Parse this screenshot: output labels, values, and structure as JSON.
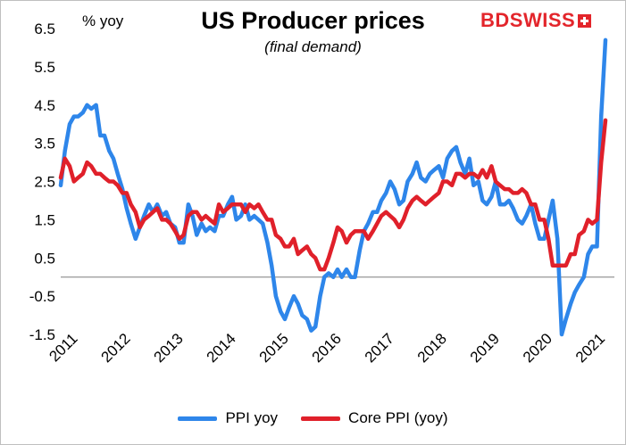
{
  "chart_data": {
    "type": "line",
    "title": "US Producer prices",
    "subtitle": "(final demand)",
    "ylabel": "% yoy",
    "ylim": [
      -1.5,
      6.5
    ],
    "yticks": [
      -1.5,
      -0.5,
      0.5,
      1.5,
      2.5,
      3.5,
      4.5,
      5.5,
      6.5
    ],
    "ytick_labels": [
      "-1.5",
      "-0.5",
      "0.5",
      "1.5",
      "2.5",
      "3.5",
      "4.5",
      "5.5",
      "6.5"
    ],
    "xlim": [
      2011.0,
      2021.5
    ],
    "xtick_values": [
      2011,
      2012,
      2013,
      2014,
      2015,
      2016,
      2017,
      2018,
      2019,
      2020,
      2021
    ],
    "xtick_labels": [
      "2011",
      "2012",
      "2013",
      "2014",
      "2015",
      "2016",
      "2017",
      "2018",
      "2019",
      "2020",
      "2021"
    ],
    "legend_position": "bottom",
    "grid": false,
    "series": [
      {
        "name": "PPI yoy",
        "color": "#2e86ea",
        "x": [
          2011.0,
          2011.08,
          2011.17,
          2011.25,
          2011.33,
          2011.42,
          2011.5,
          2011.58,
          2011.67,
          2011.75,
          2011.83,
          2011.92,
          2012.0,
          2012.08,
          2012.17,
          2012.25,
          2012.33,
          2012.42,
          2012.5,
          2012.58,
          2012.67,
          2012.75,
          2012.83,
          2012.92,
          2013.0,
          2013.08,
          2013.17,
          2013.25,
          2013.33,
          2013.42,
          2013.5,
          2013.58,
          2013.67,
          2013.75,
          2013.83,
          2013.92,
          2014.0,
          2014.08,
          2014.17,
          2014.25,
          2014.33,
          2014.42,
          2014.5,
          2014.58,
          2014.67,
          2014.75,
          2014.83,
          2014.92,
          2015.0,
          2015.08,
          2015.17,
          2015.25,
          2015.33,
          2015.42,
          2015.5,
          2015.58,
          2015.67,
          2015.75,
          2015.83,
          2015.92,
          2016.0,
          2016.08,
          2016.17,
          2016.25,
          2016.33,
          2016.42,
          2016.5,
          2016.58,
          2016.67,
          2016.75,
          2016.83,
          2016.92,
          2017.0,
          2017.08,
          2017.17,
          2017.25,
          2017.33,
          2017.42,
          2017.5,
          2017.58,
          2017.67,
          2017.75,
          2017.83,
          2017.92,
          2018.0,
          2018.08,
          2018.17,
          2018.25,
          2018.33,
          2018.42,
          2018.5,
          2018.58,
          2018.67,
          2018.75,
          2018.83,
          2018.92,
          2019.0,
          2019.08,
          2019.17,
          2019.25,
          2019.33,
          2019.42,
          2019.5,
          2019.58,
          2019.67,
          2019.75,
          2019.83,
          2019.92,
          2020.0,
          2020.08,
          2020.17,
          2020.25,
          2020.33,
          2020.42,
          2020.5,
          2020.58,
          2020.67,
          2020.75,
          2020.83,
          2020.92,
          2021.0,
          2021.08,
          2021.17,
          2021.25,
          2021.33
        ],
        "y": [
          2.4,
          3.3,
          4.0,
          4.2,
          4.2,
          4.3,
          4.5,
          4.4,
          4.5,
          3.7,
          3.7,
          3.3,
          3.1,
          2.7,
          2.3,
          1.8,
          1.4,
          1.0,
          1.3,
          1.6,
          1.9,
          1.7,
          1.9,
          1.6,
          1.7,
          1.4,
          1.3,
          0.9,
          0.9,
          1.9,
          1.6,
          1.1,
          1.4,
          1.2,
          1.3,
          1.2,
          1.6,
          1.6,
          1.9,
          2.1,
          1.5,
          1.6,
          1.9,
          1.5,
          1.6,
          1.5,
          1.4,
          0.9,
          0.3,
          -0.5,
          -0.9,
          -1.1,
          -0.8,
          -0.5,
          -0.7,
          -1.0,
          -1.1,
          -1.4,
          -1.3,
          -0.5,
          0.0,
          0.1,
          0.0,
          0.2,
          0.0,
          0.2,
          0.0,
          0.0,
          0.7,
          1.2,
          1.4,
          1.7,
          1.7,
          2.0,
          2.2,
          2.5,
          2.3,
          1.9,
          2.0,
          2.5,
          2.7,
          3.0,
          2.6,
          2.5,
          2.7,
          2.8,
          2.9,
          2.6,
          3.1,
          3.3,
          3.4,
          3.0,
          2.7,
          3.1,
          2.4,
          2.5,
          2.0,
          1.9,
          2.1,
          2.5,
          1.9,
          1.9,
          2.0,
          1.8,
          1.5,
          1.4,
          1.6,
          1.9,
          1.4,
          1.0,
          1.0,
          1.5,
          2.0,
          1.0,
          -1.5,
          -1.1,
          -0.7,
          -0.4,
          -0.2,
          0.0,
          0.6,
          0.8,
          0.8,
          4.2,
          6.2
        ]
      },
      {
        "name": "Core PPI (yoy)",
        "color": "#e0202a",
        "x": [
          2011.0,
          2011.08,
          2011.17,
          2011.25,
          2011.33,
          2011.42,
          2011.5,
          2011.58,
          2011.67,
          2011.75,
          2011.83,
          2011.92,
          2012.0,
          2012.08,
          2012.17,
          2012.25,
          2012.33,
          2012.42,
          2012.5,
          2012.58,
          2012.67,
          2012.75,
          2012.83,
          2012.92,
          2013.0,
          2013.08,
          2013.17,
          2013.25,
          2013.33,
          2013.42,
          2013.5,
          2013.58,
          2013.67,
          2013.75,
          2013.83,
          2013.92,
          2014.0,
          2014.08,
          2014.17,
          2014.25,
          2014.33,
          2014.42,
          2014.5,
          2014.58,
          2014.67,
          2014.75,
          2014.83,
          2014.92,
          2015.0,
          2015.08,
          2015.17,
          2015.25,
          2015.33,
          2015.42,
          2015.5,
          2015.58,
          2015.67,
          2015.75,
          2015.83,
          2015.92,
          2016.0,
          2016.08,
          2016.17,
          2016.25,
          2016.33,
          2016.42,
          2016.5,
          2016.58,
          2016.67,
          2016.75,
          2016.83,
          2016.92,
          2017.0,
          2017.08,
          2017.17,
          2017.25,
          2017.33,
          2017.42,
          2017.5,
          2017.58,
          2017.67,
          2017.75,
          2017.83,
          2017.92,
          2018.0,
          2018.08,
          2018.17,
          2018.25,
          2018.33,
          2018.42,
          2018.5,
          2018.58,
          2018.67,
          2018.75,
          2018.83,
          2018.92,
          2019.0,
          2019.08,
          2019.17,
          2019.25,
          2019.33,
          2019.42,
          2019.5,
          2019.58,
          2019.67,
          2019.75,
          2019.83,
          2019.92,
          2020.0,
          2020.08,
          2020.17,
          2020.25,
          2020.33,
          2020.42,
          2020.5,
          2020.58,
          2020.67,
          2020.75,
          2020.83,
          2020.92,
          2021.0,
          2021.08,
          2021.17,
          2021.25,
          2021.33
        ],
        "y": [
          2.6,
          3.1,
          2.9,
          2.5,
          2.6,
          2.7,
          3.0,
          2.9,
          2.7,
          2.7,
          2.6,
          2.5,
          2.5,
          2.4,
          2.2,
          2.2,
          1.9,
          1.7,
          1.3,
          1.5,
          1.6,
          1.7,
          1.8,
          1.5,
          1.5,
          1.4,
          1.2,
          1.0,
          1.1,
          1.6,
          1.7,
          1.7,
          1.5,
          1.6,
          1.5,
          1.4,
          1.9,
          1.7,
          1.8,
          1.9,
          1.9,
          1.9,
          1.7,
          1.9,
          1.8,
          1.9,
          1.7,
          1.5,
          1.5,
          1.1,
          1.0,
          0.8,
          0.8,
          1.0,
          0.6,
          0.7,
          0.8,
          0.6,
          0.5,
          0.2,
          0.2,
          0.5,
          0.9,
          1.3,
          1.2,
          0.9,
          1.1,
          1.2,
          1.2,
          1.2,
          1.0,
          1.2,
          1.4,
          1.6,
          1.7,
          1.6,
          1.5,
          1.3,
          1.5,
          1.8,
          2.0,
          2.1,
          2.0,
          1.9,
          2.0,
          2.1,
          2.2,
          2.5,
          2.5,
          2.4,
          2.7,
          2.7,
          2.6,
          2.7,
          2.7,
          2.6,
          2.8,
          2.6,
          2.9,
          2.5,
          2.4,
          2.3,
          2.3,
          2.2,
          2.2,
          2.3,
          2.2,
          1.9,
          1.9,
          1.5,
          1.5,
          1.0,
          0.3,
          0.3,
          0.3,
          0.3,
          0.6,
          0.6,
          1.1,
          1.2,
          1.5,
          1.4,
          1.5,
          3.0,
          4.1
        ]
      }
    ]
  },
  "brand": {
    "text": "BDSWISS"
  },
  "legend": [
    {
      "label": "PPI yoy",
      "color": "#2e86ea"
    },
    {
      "label": "Core PPI (yoy)",
      "color": "#e0202a"
    }
  ]
}
